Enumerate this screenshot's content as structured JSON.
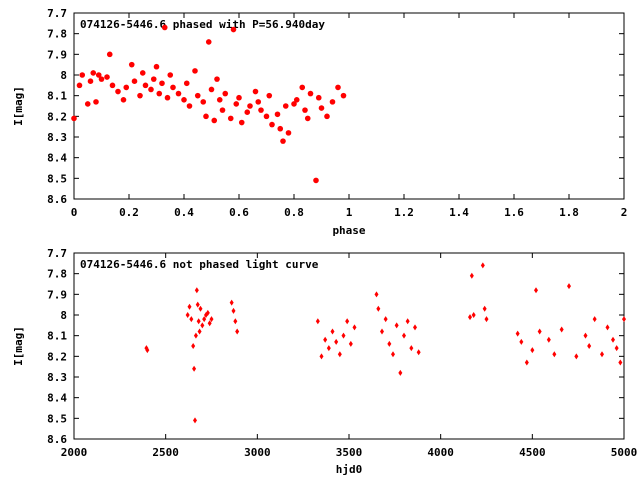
{
  "chart_data": [
    {
      "type": "scatter",
      "title": "074126-5446.6 phased with P=56.940day",
      "xlabel": "phase",
      "ylabel": "I[mag]",
      "xlim": [
        0,
        2
      ],
      "ylim": [
        7.7,
        8.6
      ],
      "y_inverted": true,
      "x_ticks": [
        "0",
        "0.2",
        "0.4",
        "0.6",
        "0.8",
        "1",
        "1.2",
        "1.4",
        "1.6",
        "1.8",
        "2"
      ],
      "y_ticks": [
        "7.7",
        "7.8",
        "7.9",
        "8",
        "8.1",
        "8.2",
        "8.3",
        "8.4",
        "8.5",
        "8.6"
      ],
      "grid": false,
      "color": "#ff0000",
      "series": [
        {
          "x": [
            0.0,
            0.02,
            0.03,
            0.05,
            0.06,
            0.07,
            0.08,
            0.09,
            0.1,
            0.12,
            0.13,
            0.14,
            0.16,
            0.18,
            0.19,
            0.21,
            0.22,
            0.24,
            0.25,
            0.26,
            0.28,
            0.29,
            0.3,
            0.31,
            0.32,
            0.33,
            0.34,
            0.35,
            0.36,
            0.38,
            0.4,
            0.41,
            0.42,
            0.44,
            0.45,
            0.47,
            0.48,
            0.49,
            0.5,
            0.51,
            0.52,
            0.53,
            0.54,
            0.55,
            0.57,
            0.58,
            0.59,
            0.6,
            0.61,
            0.63,
            0.64,
            0.66,
            0.67,
            0.68,
            0.7,
            0.71,
            0.72,
            0.74,
            0.75,
            0.76,
            0.77,
            0.78,
            0.8,
            0.81,
            0.83,
            0.84,
            0.85,
            0.86,
            0.88,
            0.89,
            0.9,
            0.92,
            0.94,
            0.96,
            0.98
          ],
          "y": [
            8.21,
            8.05,
            8.0,
            8.14,
            8.03,
            7.99,
            8.13,
            8.0,
            8.02,
            8.01,
            7.9,
            8.05,
            8.08,
            8.12,
            8.06,
            7.95,
            8.03,
            8.1,
            7.99,
            8.05,
            8.07,
            8.02,
            7.96,
            8.09,
            8.04,
            7.77,
            8.11,
            8.0,
            8.06,
            8.09,
            8.12,
            8.04,
            8.15,
            7.98,
            8.1,
            8.13,
            8.2,
            7.84,
            8.07,
            8.22,
            8.02,
            8.12,
            8.17,
            8.09,
            8.21,
            7.78,
            8.14,
            8.11,
            8.23,
            8.18,
            8.15,
            8.08,
            8.13,
            8.17,
            8.2,
            8.1,
            8.24,
            8.19,
            8.26,
            8.32,
            8.15,
            8.28,
            8.14,
            8.12,
            8.06,
            8.17,
            8.21,
            8.09,
            8.51,
            8.11,
            8.16,
            8.2,
            8.13,
            8.06,
            8.1
          ]
        }
      ]
    },
    {
      "type": "scatter",
      "title": "074126-5446.6 not phased light curve",
      "xlabel": "hjd0",
      "ylabel": "I[mag]",
      "xlim": [
        2000,
        5000
      ],
      "ylim": [
        7.7,
        8.6
      ],
      "y_inverted": true,
      "x_ticks": [
        "2000",
        "2500",
        "3000",
        "3500",
        "4000",
        "4500",
        "5000"
      ],
      "y_ticks": [
        "7.7",
        "7.8",
        "7.9",
        "8",
        "8.1",
        "8.2",
        "8.3",
        "8.4",
        "8.5",
        "8.6"
      ],
      "grid": false,
      "color": "#ff0000",
      "series": [
        {
          "x": [
            2395,
            2400,
            2620,
            2630,
            2640,
            2650,
            2655,
            2660,
            2665,
            2670,
            2675,
            2680,
            2685,
            2690,
            2700,
            2710,
            2720,
            2730,
            2740,
            2750,
            2860,
            2870,
            2880,
            2890,
            3330,
            3350,
            3370,
            3390,
            3410,
            3430,
            3450,
            3470,
            3490,
            3510,
            3530,
            3650,
            3660,
            3680,
            3700,
            3720,
            3740,
            3760,
            3780,
            3800,
            3820,
            3840,
            3860,
            3880,
            4160,
            4170,
            4180,
            4230,
            4240,
            4250,
            4420,
            4440,
            4470,
            4500,
            4520,
            4540,
            4590,
            4620,
            4660,
            4700,
            4740,
            4790,
            4810,
            4840,
            4880,
            4910,
            4940,
            4960,
            4980,
            5000
          ],
          "y": [
            8.16,
            8.17,
            8.0,
            7.96,
            8.02,
            8.15,
            8.26,
            8.51,
            8.1,
            7.88,
            7.95,
            8.03,
            8.08,
            7.97,
            8.05,
            8.02,
            8.0,
            7.99,
            8.04,
            8.02,
            7.94,
            7.98,
            8.03,
            8.08,
            8.03,
            8.2,
            8.12,
            8.16,
            8.08,
            8.13,
            8.19,
            8.1,
            8.03,
            8.14,
            8.06,
            7.9,
            7.97,
            8.08,
            8.02,
            8.14,
            8.19,
            8.05,
            8.28,
            8.1,
            8.03,
            8.16,
            8.06,
            8.18,
            8.01,
            7.81,
            8.0,
            7.76,
            7.97,
            8.02,
            8.09,
            8.13,
            8.23,
            8.17,
            7.88,
            8.08,
            8.12,
            8.19,
            8.07,
            7.86,
            8.2,
            8.1,
            8.15,
            8.02,
            8.19,
            8.06,
            8.12,
            8.16,
            8.23,
            8.02
          ]
        }
      ]
    }
  ]
}
